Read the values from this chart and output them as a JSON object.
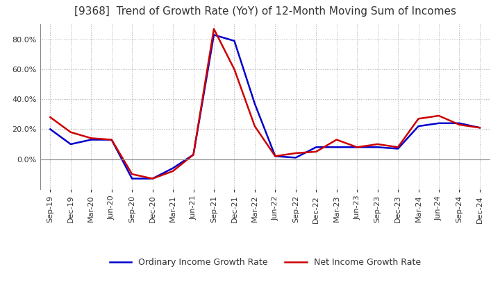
{
  "title": "[9368]  Trend of Growth Rate (YoY) of 12-Month Moving Sum of Incomes",
  "title_fontsize": 11,
  "background_color": "#ffffff",
  "grid_color": "#aaaaaa",
  "legend_labels": [
    "Ordinary Income Growth Rate",
    "Net Income Growth Rate"
  ],
  "x_labels": [
    "Sep-19",
    "Dec-19",
    "Mar-20",
    "Jun-20",
    "Sep-20",
    "Dec-20",
    "Mar-21",
    "Jun-21",
    "Sep-21",
    "Dec-21",
    "Mar-22",
    "Jun-22",
    "Sep-22",
    "Dec-22",
    "Mar-23",
    "Jun-23",
    "Sep-23",
    "Dec-23",
    "Mar-24",
    "Jun-24",
    "Sep-24",
    "Dec-24"
  ],
  "ordinary_income": [
    20,
    10,
    13,
    13,
    -13,
    -13,
    -6,
    3,
    83,
    79,
    37,
    2,
    1,
    8,
    8,
    8,
    8,
    7,
    22,
    24,
    24,
    21
  ],
  "net_income": [
    28,
    18,
    14,
    13,
    -10,
    -13,
    -8,
    3,
    87,
    60,
    22,
    2,
    4,
    5,
    13,
    8,
    10,
    8,
    27,
    29,
    23,
    21
  ],
  "line_color_ordinary": "#0000cc",
  "line_color_net": "#cc0000",
  "line_width": 1.8,
  "ylim": [
    -20,
    90
  ],
  "yticks": [
    0,
    20,
    40,
    60,
    80
  ]
}
